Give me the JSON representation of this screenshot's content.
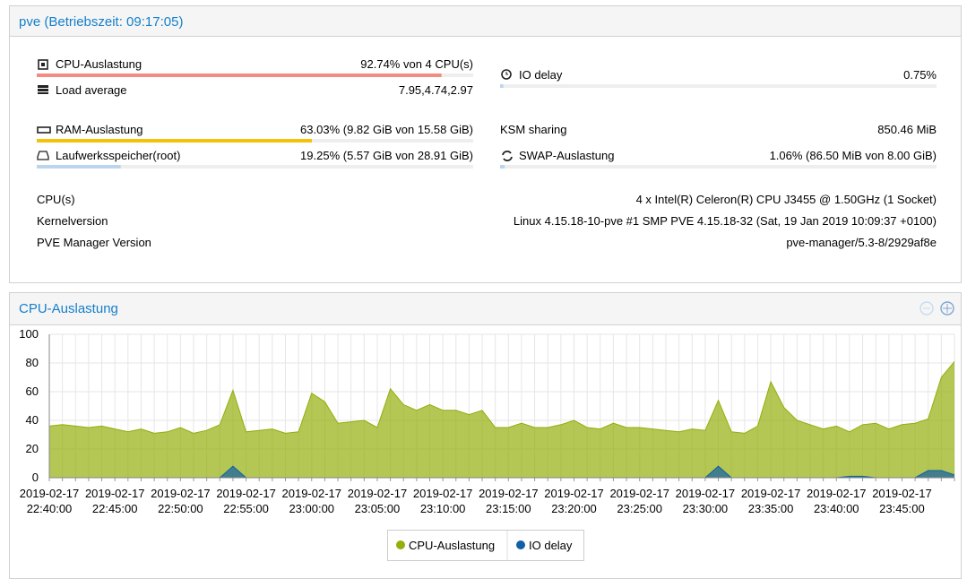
{
  "header": {
    "title": "pve (Betriebszeit: 09:17:05)"
  },
  "status": {
    "cpu": {
      "label": "CPU-Auslastung",
      "text": "92.74% von 4 CPU(s)",
      "value": 92.74
    },
    "load": {
      "label": "Load average",
      "text": "7.95,4.74,2.97"
    },
    "io_delay": {
      "label": "IO delay",
      "text": "0.75%",
      "value": 0.75
    },
    "ram": {
      "label": "RAM-Auslastung",
      "text": "63.03% (9.82 GiB von 15.58 GiB)",
      "value": 63.03
    },
    "disk": {
      "label": "Laufwerksspeicher(root)",
      "text": "19.25% (5.57 GiB von 28.91 GiB)",
      "value": 19.25
    },
    "ksm": {
      "label": "KSM sharing",
      "text": "850.46 MiB"
    },
    "swap": {
      "label": "SWAP-Auslastung",
      "text": "1.06% (86.50 MiB von 8.00 GiB)",
      "value": 1.06
    }
  },
  "info": [
    [
      "CPU(s)",
      "4 x Intel(R) Celeron(R) CPU J3455 @ 1.50GHz (1 Socket)"
    ],
    [
      "Kernelversion",
      "Linux 4.15.18-10-pve #1 SMP PVE 4.15.18-32 (Sat, 19 Jan 2019 10:09:37 +0100)"
    ],
    [
      "PVE Manager Version",
      "pve-manager/5.3-8/2929af8e"
    ]
  ],
  "chart_data": {
    "type": "area",
    "title": "CPU-Auslastung",
    "categories": [
      "2019-02-17 22:40:00",
      null,
      null,
      null,
      null,
      "2019-02-17 22:45:00",
      null,
      null,
      null,
      null,
      "2019-02-17 22:50:00",
      null,
      null,
      null,
      null,
      "2019-02-17 22:55:00",
      null,
      null,
      null,
      null,
      "2019-02-17 23:00:00",
      null,
      null,
      null,
      null,
      "2019-02-17 23:05:00",
      null,
      null,
      null,
      null,
      "2019-02-17 23:10:00",
      null,
      null,
      null,
      null,
      "2019-02-17 23:15:00",
      null,
      null,
      null,
      null,
      "2019-02-17 23:20:00",
      null,
      null,
      null,
      null,
      "2019-02-17 23:25:00",
      null,
      null,
      null,
      null,
      "2019-02-17 23:30:00",
      null,
      null,
      null,
      null,
      "2019-02-17 23:35:00",
      null,
      null,
      null,
      null,
      "2019-02-17 23:40:00",
      null,
      null,
      null,
      null,
      "2019-02-17 23:45:00",
      null,
      null,
      null,
      null
    ],
    "series": [
      {
        "name": "CPU-Auslastung",
        "color": "#94ae0a",
        "values": [
          36,
          37,
          36,
          35,
          36,
          34,
          32,
          34,
          31,
          32,
          35,
          31,
          33,
          37,
          61,
          32,
          33,
          34,
          31,
          32,
          59,
          53,
          38,
          39,
          40,
          35,
          62,
          51,
          47,
          51,
          47,
          47,
          44,
          47,
          35,
          35,
          38,
          35,
          35,
          37,
          40,
          35,
          34,
          38,
          35,
          35,
          34,
          33,
          32,
          34,
          33,
          54,
          32,
          31,
          36,
          67,
          49,
          40,
          37,
          34,
          36,
          32,
          37,
          38,
          34,
          37,
          38,
          41,
          70,
          81
        ]
      },
      {
        "name": "IO delay",
        "color": "#115fa6",
        "values": [
          0,
          0,
          0,
          0,
          0,
          0,
          0,
          0,
          0,
          0,
          0,
          0,
          0,
          0,
          8,
          0,
          0,
          0,
          0,
          0,
          0,
          0,
          0,
          0,
          0,
          0,
          0,
          0,
          0,
          0,
          0,
          0,
          0,
          0,
          0,
          0,
          0,
          0,
          0,
          0,
          0,
          0,
          0,
          0,
          0,
          0,
          0,
          0,
          0,
          0,
          0,
          8,
          0,
          0,
          0,
          0,
          0,
          0,
          0,
          0,
          0,
          1,
          1,
          0,
          0,
          0,
          0,
          5,
          5,
          2
        ]
      }
    ],
    "ylim": [
      0,
      100
    ],
    "yticks": [
      0,
      20,
      40,
      60,
      80,
      100
    ],
    "grid": true
  }
}
